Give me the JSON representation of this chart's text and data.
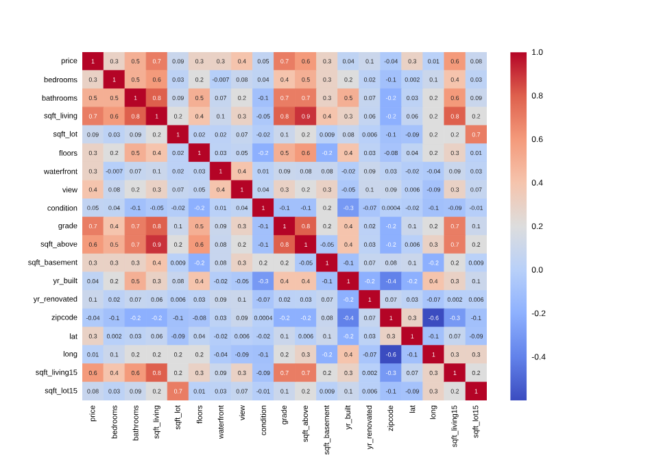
{
  "chart_data": {
    "type": "heatmap",
    "categories": [
      "price",
      "bedrooms",
      "bathrooms",
      "sqft_living",
      "sqft_lot",
      "floors",
      "waterfront",
      "view",
      "condition",
      "grade",
      "sqft_above",
      "sqft_basement",
      "yr_built",
      "yr_renovated",
      "zipcode",
      "lat",
      "long",
      "sqft_living15",
      "sqft_lot15"
    ],
    "y_categories": [
      "price",
      "bedrooms",
      "bathrooms",
      "sqft_living",
      "sqft_lot",
      "floors",
      "waterfront",
      "view",
      "condition",
      "grade",
      "sqft_above",
      "sqft_basement",
      "yr_built",
      "yr_renovated",
      "zipcode",
      "lat",
      "long",
      "sqft_living15",
      "sqft_lot15"
    ],
    "cells": [
      [
        1,
        0.3,
        0.5,
        0.7,
        0.09,
        0.3,
        0.3,
        0.4,
        0.05,
        0.7,
        0.6,
        0.3,
        0.04,
        0.1,
        -0.04,
        0.3,
        0.01,
        0.6,
        0.08
      ],
      [
        0.3,
        1,
        0.5,
        0.6,
        0.03,
        0.2,
        -0.007,
        0.08,
        0.04,
        0.4,
        0.5,
        0.3,
        0.2,
        0.02,
        -0.1,
        0.002,
        0.1,
        0.4,
        0.03
      ],
      [
        0.5,
        0.5,
        1,
        0.8,
        0.09,
        0.5,
        0.07,
        0.2,
        -0.1,
        0.7,
        0.7,
        0.3,
        0.5,
        0.07,
        -0.2,
        0.03,
        0.2,
        0.6,
        0.09
      ],
      [
        0.7,
        0.6,
        0.8,
        1,
        0.2,
        0.4,
        0.1,
        0.3,
        -0.05,
        0.8,
        0.9,
        0.4,
        0.3,
        0.06,
        -0.2,
        0.06,
        0.2,
        0.8,
        0.2
      ],
      [
        0.09,
        0.03,
        0.09,
        0.2,
        1,
        0.02,
        0.02,
        0.07,
        -0.02,
        0.1,
        0.2,
        0.009,
        0.08,
        0.006,
        -0.1,
        -0.09,
        0.2,
        0.2,
        0.7
      ],
      [
        0.3,
        0.2,
        0.5,
        0.4,
        0.02,
        1,
        0.03,
        0.05,
        -0.2,
        0.5,
        0.6,
        -0.2,
        0.4,
        0.03,
        -0.08,
        0.04,
        0.2,
        0.3,
        0.01
      ],
      [
        0.3,
        -0.007,
        0.07,
        0.1,
        0.02,
        0.03,
        1,
        0.4,
        0.01,
        0.09,
        0.08,
        0.08,
        -0.02,
        0.09,
        0.03,
        -0.02,
        -0.04,
        0.09,
        0.03
      ],
      [
        0.4,
        0.08,
        0.2,
        0.3,
        0.07,
        0.05,
        0.4,
        1,
        0.04,
        0.3,
        0.2,
        0.3,
        -0.05,
        0.1,
        0.09,
        0.006,
        -0.09,
        0.3,
        0.07
      ],
      [
        0.05,
        0.04,
        -0.1,
        -0.05,
        -0.02,
        -0.2,
        0.01,
        0.04,
        1,
        -0.1,
        -0.1,
        0.2,
        -0.3,
        -0.07,
        0.0004,
        -0.02,
        -0.1,
        -0.09,
        -0.01
      ],
      [
        0.7,
        0.4,
        0.7,
        0.8,
        0.1,
        0.5,
        0.09,
        0.3,
        -0.1,
        1,
        0.8,
        0.2,
        0.4,
        0.02,
        -0.2,
        0.1,
        0.2,
        0.7,
        0.1
      ],
      [
        0.6,
        0.5,
        0.7,
        0.9,
        0.2,
        0.6,
        0.08,
        0.2,
        -0.1,
        0.8,
        1,
        -0.05,
        0.4,
        0.03,
        -0.2,
        0.006,
        0.3,
        0.7,
        0.2
      ],
      [
        0.3,
        0.3,
        0.3,
        0.4,
        0.009,
        -0.2,
        0.08,
        0.3,
        0.2,
        0.2,
        -0.05,
        1,
        -0.1,
        0.07,
        0.08,
        0.1,
        -0.2,
        0.2,
        0.009
      ],
      [
        0.04,
        0.2,
        0.5,
        0.3,
        0.08,
        0.4,
        -0.02,
        -0.05,
        -0.3,
        0.4,
        0.4,
        -0.1,
        1,
        -0.2,
        -0.4,
        -0.2,
        0.4,
        0.3,
        0.1
      ],
      [
        0.1,
        0.02,
        0.07,
        0.06,
        0.006,
        0.03,
        0.09,
        0.1,
        -0.07,
        0.02,
        0.03,
        0.07,
        -0.2,
        1,
        0.07,
        0.03,
        -0.07,
        0.002,
        0.006
      ],
      [
        -0.04,
        -0.1,
        -0.2,
        -0.2,
        -0.1,
        -0.08,
        0.03,
        0.09,
        0.0004,
        -0.2,
        -0.2,
        0.08,
        -0.4,
        0.07,
        1,
        0.3,
        -0.6,
        -0.3,
        -0.1
      ],
      [
        0.3,
        0.002,
        0.03,
        0.06,
        -0.09,
        0.04,
        -0.02,
        0.006,
        -0.02,
        0.1,
        0.006,
        0.1,
        -0.2,
        0.03,
        0.3,
        1,
        -0.1,
        0.07,
        -0.09
      ],
      [
        0.01,
        0.1,
        0.2,
        0.2,
        0.2,
        0.2,
        -0.04,
        -0.09,
        -0.1,
        0.2,
        0.3,
        -0.2,
        0.4,
        -0.07,
        -0.6,
        -0.1,
        1,
        0.3,
        0.3
      ],
      [
        0.6,
        0.4,
        0.6,
        0.8,
        0.2,
        0.3,
        0.09,
        0.3,
        -0.09,
        0.7,
        0.7,
        0.2,
        0.3,
        0.002,
        -0.3,
        0.07,
        0.3,
        1,
        0.2
      ],
      [
        0.08,
        0.03,
        0.09,
        0.2,
        0.7,
        0.01,
        0.03,
        0.07,
        -0.01,
        0.1,
        0.2,
        0.009,
        0.1,
        0.006,
        -0.1,
        -0.09,
        0.3,
        0.2,
        1
      ]
    ],
    "cell_labels": [
      [
        "1",
        "0.3",
        "0.5",
        "0.7",
        "0.09",
        "0.3",
        "0.3",
        "0.4",
        "0.05",
        "0.7",
        "0.6",
        "0.3",
        "0.04",
        "0.1",
        "-0.04",
        "0.3",
        "0.01",
        "0.6",
        "0.08"
      ],
      [
        "0.3",
        "1",
        "0.5",
        "0.6",
        "0.03",
        "0.2",
        "-0.007",
        "0.08",
        "0.04",
        "0.4",
        "0.5",
        "0.3",
        "0.2",
        "0.02",
        "-0.1",
        "0.002",
        "0.1",
        "0.4",
        "0.03"
      ],
      [
        "0.5",
        "0.5",
        "1",
        "0.8",
        "0.09",
        "0.5",
        "0.07",
        "0.2",
        "-0.1",
        "0.7",
        "0.7",
        "0.3",
        "0.5",
        "0.07",
        "-0.2",
        "0.03",
        "0.2",
        "0.6",
        "0.09"
      ],
      [
        "0.7",
        "0.6",
        "0.8",
        "1",
        "0.2",
        "0.4",
        "0.1",
        "0.3",
        "-0.05",
        "0.8",
        "0.9",
        "0.4",
        "0.3",
        "0.06",
        "-0.2",
        "0.06",
        "0.2",
        "0.8",
        "0.2"
      ],
      [
        "0.09",
        "0.03",
        "0.09",
        "0.2",
        "1",
        "0.02",
        "0.02",
        "0.07",
        "-0.02",
        "0.1",
        "0.2",
        "0.009",
        "0.08",
        "0.006",
        "-0.1",
        "-0.09",
        "0.2",
        "0.2",
        "0.7"
      ],
      [
        "0.3",
        "0.2",
        "0.5",
        "0.4",
        "0.02",
        "1",
        "0.03",
        "0.05",
        "-0.2",
        "0.5",
        "0.6",
        "-0.2",
        "0.4",
        "0.03",
        "-0.08",
        "0.04",
        "0.2",
        "0.3",
        "0.01"
      ],
      [
        "0.3",
        "-0.007",
        "0.07",
        "0.1",
        "0.02",
        "0.03",
        "1",
        "0.4",
        "0.01",
        "0.09",
        "0.08",
        "0.08",
        "-0.02",
        "0.09",
        "0.03",
        "-0.02",
        "-0.04",
        "0.09",
        "0.03"
      ],
      [
        "0.4",
        "0.08",
        "0.2",
        "0.3",
        "0.07",
        "0.05",
        "0.4",
        "1",
        "0.04",
        "0.3",
        "0.2",
        "0.3",
        "-0.05",
        "0.1",
        "0.09",
        "0.006",
        "-0.09",
        "0.3",
        "0.07"
      ],
      [
        "0.05",
        "0.04",
        "-0.1",
        "-0.05",
        "-0.02",
        "-0.2",
        "0.01",
        "0.04",
        "1",
        "-0.1",
        "-0.1",
        "0.2",
        "-0.3",
        "-0.07",
        "0.0004",
        "-0.02",
        "-0.1",
        "-0.09",
        "-0.01"
      ],
      [
        "0.7",
        "0.4",
        "0.7",
        "0.8",
        "0.1",
        "0.5",
        "0.09",
        "0.3",
        "-0.1",
        "1",
        "0.8",
        "0.2",
        "0.4",
        "0.02",
        "-0.2",
        "0.1",
        "0.2",
        "0.7",
        "0.1"
      ],
      [
        "0.6",
        "0.5",
        "0.7",
        "0.9",
        "0.2",
        "0.6",
        "0.08",
        "0.2",
        "-0.1",
        "0.8",
        "1",
        "-0.05",
        "0.4",
        "0.03",
        "-0.2",
        "0.006",
        "0.3",
        "0.7",
        "0.2"
      ],
      [
        "0.3",
        "0.3",
        "0.3",
        "0.4",
        "0.009",
        "-0.2",
        "0.08",
        "0.3",
        "0.2",
        "0.2",
        "-0.05",
        "1",
        "-0.1",
        "0.07",
        "0.08",
        "0.1",
        "-0.2",
        "0.2",
        "0.009"
      ],
      [
        "0.04",
        "0.2",
        "0.5",
        "0.3",
        "0.08",
        "0.4",
        "-0.02",
        "-0.05",
        "-0.3",
        "0.4",
        "0.4",
        "-0.1",
        "1",
        "-0.2",
        "-0.4",
        "-0.2",
        "0.4",
        "0.3",
        "0.1"
      ],
      [
        "0.1",
        "0.02",
        "0.07",
        "0.06",
        "0.006",
        "0.03",
        "0.09",
        "0.1",
        "-0.07",
        "0.02",
        "0.03",
        "0.07",
        "-0.2",
        "1",
        "0.07",
        "0.03",
        "-0.07",
        "0.002",
        "0.006"
      ],
      [
        "-0.04",
        "-0.1",
        "-0.2",
        "-0.2",
        "-0.1",
        "-0.08",
        "0.03",
        "0.09",
        "0.0004",
        "-0.2",
        "-0.2",
        "0.08",
        "-0.4",
        "0.07",
        "1",
        "0.3",
        "-0.6",
        "-0.3",
        "-0.1"
      ],
      [
        "0.3",
        "0.002",
        "0.03",
        "0.06",
        "-0.09",
        "0.04",
        "-0.02",
        "0.006",
        "-0.02",
        "0.1",
        "0.006",
        "0.1",
        "-0.2",
        "0.03",
        "0.3",
        "1",
        "-0.1",
        "0.07",
        "-0.09"
      ],
      [
        "0.01",
        "0.1",
        "0.2",
        "0.2",
        "0.2",
        "0.2",
        "-0.04",
        "-0.09",
        "-0.1",
        "0.2",
        "0.3",
        "-0.2",
        "0.4",
        "-0.07",
        "-0.6",
        "-0.1",
        "1",
        "0.3",
        "0.3"
      ],
      [
        "0.6",
        "0.4",
        "0.6",
        "0.8",
        "0.2",
        "0.3",
        "0.09",
        "0.3",
        "-0.09",
        "0.7",
        "0.7",
        "0.2",
        "0.3",
        "0.002",
        "-0.3",
        "0.07",
        "0.3",
        "1",
        "0.2"
      ],
      [
        "0.08",
        "0.03",
        "0.09",
        "0.2",
        "0.7",
        "0.01",
        "0.03",
        "0.07",
        "-0.01",
        "0.1",
        "0.2",
        "0.009",
        "0.1",
        "0.006",
        "-0.1",
        "-0.09",
        "0.3",
        "0.2",
        "1"
      ]
    ],
    "clim": [
      -0.6,
      1.0
    ],
    "cticks": [
      {
        "value": -0.4,
        "label": "-0.4"
      },
      {
        "value": -0.2,
        "label": "-0.2"
      },
      {
        "value": 0,
        "label": "0.0"
      },
      {
        "value": 0.2,
        "label": "0.2"
      },
      {
        "value": 0.4,
        "label": "0.4"
      },
      {
        "value": 0.6,
        "label": "0.6"
      },
      {
        "value": 0.8,
        "label": "0.8"
      },
      {
        "value": 1,
        "label": "1.0"
      }
    ]
  }
}
